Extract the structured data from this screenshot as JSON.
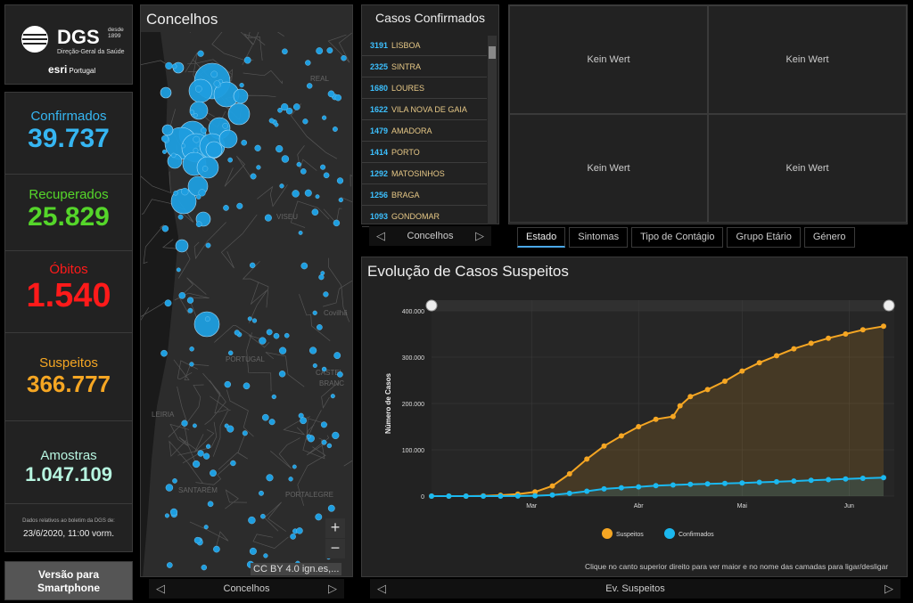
{
  "logo": {
    "name": "DGS",
    "desde": "desde",
    "year": "1899",
    "subtitle": "Direção-Geral da Saúde",
    "partner": "esri",
    "partner_sub": "Portugal"
  },
  "stats": [
    {
      "label": "Confirmados",
      "value": "39.737",
      "color": "#36b6f2"
    },
    {
      "label": "Recuperados",
      "value": "25.829",
      "color": "#55d62a"
    },
    {
      "label": "Óbitos",
      "value": "1.540",
      "color": "#ff1a1a"
    },
    {
      "label": "Suspeitos",
      "value": "366.777",
      "color": "#f5a623"
    },
    {
      "label": "Amostras",
      "value": "1.047.109",
      "color": "#b7f5e0"
    }
  ],
  "note": {
    "text": "Dados relativos ao boletim da DGS de:",
    "date": "23/6/2020, 11:00 vorm."
  },
  "smartphone": {
    "line1": "Versão para",
    "line2": "Smartphone"
  },
  "map": {
    "title": "Concelhos",
    "attribution": "CC BY 4.0 ign.es,...",
    "nav_label": "Concelhos",
    "zoom_in": "+",
    "zoom_out": "−",
    "labels": [
      "REAL",
      "VISEU",
      "PORTUGAL",
      "CASTEL",
      "BRANC",
      "Covilhã",
      "LEIRIA",
      "SANTARÉM",
      "PORTALEGRE"
    ]
  },
  "list": {
    "title": "Casos Confirmados",
    "nav_label": "Concelhos",
    "items": [
      {
        "count": "3191",
        "name": "LISBOA"
      },
      {
        "count": "2325",
        "name": "SINTRA"
      },
      {
        "count": "1680",
        "name": "LOURES"
      },
      {
        "count": "1622",
        "name": "VILA NOVA DE GAIA"
      },
      {
        "count": "1479",
        "name": "AMADORA"
      },
      {
        "count": "1414",
        "name": "PORTO"
      },
      {
        "count": "1292",
        "name": "MATOSINHOS"
      },
      {
        "count": "1256",
        "name": "BRAGA"
      },
      {
        "count": "1093",
        "name": "GONDOMAR"
      }
    ]
  },
  "kein_wert": [
    "Kein Wert",
    "Kein Wert",
    "Kein Wert",
    "Kein Wert"
  ],
  "tabs": [
    "Estado",
    "Sintomas",
    "Tipo de Contágio",
    "Grupo Etário",
    "Género"
  ],
  "chart_data": {
    "type": "line",
    "title": "Evolução de Casos Suspeitos",
    "ylabel": "Número de Casos",
    "ylim": [
      0,
      400000
    ],
    "yticks": [
      "400.000",
      "300.000",
      "200.000",
      "100.000",
      "0"
    ],
    "yticks_values": [
      400000,
      300000,
      200000,
      100000,
      0
    ],
    "xticks": [
      "Mar",
      "Abr",
      "Mai",
      "Jun"
    ],
    "xticks_days": [
      29,
      60,
      90,
      121
    ],
    "x_days_range": [
      0,
      131
    ],
    "series": [
      {
        "name": "Suspeitos",
        "color": "#f5a623",
        "x": [
          0,
          5,
          10,
          15,
          20,
          25,
          30,
          35,
          40,
          45,
          50,
          55,
          60,
          65,
          70,
          72,
          75,
          80,
          85,
          90,
          95,
          100,
          105,
          110,
          115,
          120,
          125,
          131
        ],
        "y": [
          0,
          0,
          0,
          600,
          2000,
          4500,
          9000,
          22000,
          48000,
          80000,
          108000,
          130000,
          150000,
          166000,
          172000,
          195000,
          215000,
          230000,
          248000,
          270000,
          288000,
          303000,
          318000,
          330000,
          341000,
          350000,
          359000,
          366777
        ]
      },
      {
        "name": "Confirmados",
        "color": "#1bb8ef",
        "x": [
          0,
          5,
          10,
          15,
          20,
          25,
          30,
          35,
          40,
          45,
          50,
          55,
          60,
          65,
          70,
          75,
          80,
          85,
          90,
          95,
          100,
          105,
          110,
          115,
          120,
          125,
          131
        ],
        "y": [
          0,
          0,
          0,
          0,
          0,
          100,
          800,
          2500,
          6000,
          10500,
          15500,
          18000,
          20000,
          22500,
          24000,
          25500,
          26500,
          27500,
          28500,
          29800,
          31000,
          32500,
          34000,
          35500,
          37000,
          38500,
          39737
        ]
      }
    ],
    "legend": [
      "Suspeitos",
      "Confirmados"
    ],
    "hint": "Clique no canto superior direito para ver maior e no nome das camadas para ligar/desligar",
    "nav_label": "Ev. Suspeitos"
  }
}
